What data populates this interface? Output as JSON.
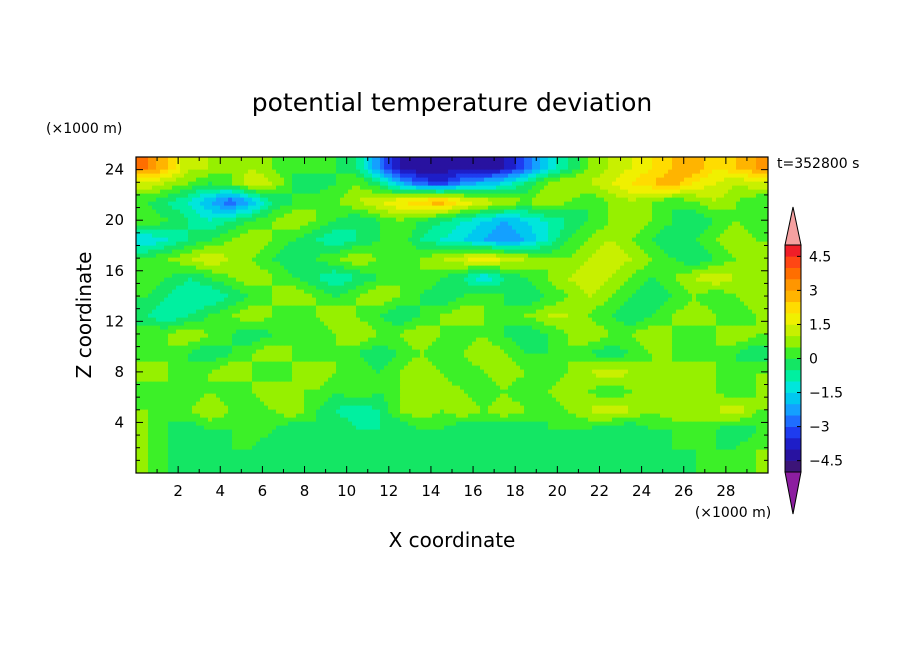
{
  "chart_data": {
    "type": "heatmap",
    "title": "potential temperature deviation",
    "xlabel": "X coordinate",
    "ylabel": "Z coordinate",
    "x_unit": "(×1000 m)",
    "y_unit": "(×1000 m)",
    "time_label": "t=352800 s",
    "xlim": [
      0,
      30
    ],
    "ylim": [
      0,
      25
    ],
    "x_ticks": [
      2,
      4,
      6,
      8,
      10,
      12,
      14,
      16,
      18,
      20,
      22,
      24,
      26,
      28
    ],
    "y_ticks": [
      4,
      8,
      12,
      16,
      20,
      24
    ],
    "colorbar": {
      "levels": [
        -5,
        -4.5,
        -4,
        -3.5,
        -3,
        -2.5,
        -2,
        -1.5,
        -1,
        -0.5,
        0,
        0.5,
        1,
        1.5,
        2,
        2.5,
        3,
        3.5,
        4,
        4.5,
        5
      ],
      "tick_labels": [
        "4.5",
        "3",
        "1.5",
        "0",
        "−1.5",
        "−3",
        "−4.5"
      ],
      "tick_values": [
        4.5,
        3,
        1.5,
        0,
        -1.5,
        -3,
        -4.5
      ],
      "bins_colors": [
        "#3c1478",
        "#2812a0",
        "#1e1ec8",
        "#1e3cf0",
        "#1e6eff",
        "#14a0ff",
        "#00c8f0",
        "#00e6dc",
        "#00f0a0",
        "#14e664",
        "#3cf028",
        "#96f000",
        "#c8f000",
        "#f0f000",
        "#ffdc00",
        "#ffb400",
        "#ff9600",
        "#ff6e00",
        "#ff4614",
        "#f01e28"
      ],
      "under_color": "#8c1ea0",
      "over_color": "#f5a0a0"
    },
    "field_description_rows": [
      {
        "z": 24.2,
        "values": [
          3.5,
          2.5,
          1.0,
          1.0,
          0.5,
          1.0,
          0.5,
          0.0,
          0.5,
          0.0,
          -0.5,
          -2.5,
          -4.0,
          -4.5,
          -4.5,
          -4.0,
          -4.5,
          -4.0,
          -3.0,
          -1.5,
          -0.5,
          0.5,
          1.0,
          1.5,
          2.0,
          2.5,
          3.0,
          2.0,
          2.5,
          3.0
        ]
      },
      {
        "z": 23.0,
        "values": [
          1.5,
          1.0,
          0.5,
          0.0,
          0.5,
          1.5,
          1.0,
          0.0,
          -0.5,
          0.0,
          0.5,
          -0.5,
          -2.0,
          -3.0,
          -3.5,
          -2.5,
          -2.0,
          -1.5,
          -0.5,
          0.5,
          1.0,
          1.0,
          1.5,
          2.0,
          2.5,
          3.0,
          2.0,
          1.5,
          1.0,
          1.5
        ]
      },
      {
        "z": 21.5,
        "values": [
          0.0,
          -0.5,
          -1.0,
          -2.0,
          -3.0,
          -2.0,
          -0.5,
          0.0,
          0.5,
          0.5,
          1.0,
          1.5,
          2.0,
          2.5,
          3.0,
          2.0,
          1.5,
          1.0,
          0.5,
          1.0,
          0.5,
          0.0,
          0.5,
          1.0,
          0.5,
          0.0,
          0.5,
          1.0,
          0.5,
          0.0
        ]
      },
      {
        "z": 20.0,
        "values": [
          0.5,
          0.0,
          -0.5,
          -1.0,
          -0.5,
          0.0,
          0.5,
          1.0,
          0.5,
          0.0,
          -0.5,
          0.0,
          0.5,
          0.0,
          -0.5,
          -1.0,
          -1.5,
          -2.0,
          -1.5,
          -1.0,
          -0.5,
          0.0,
          0.5,
          1.0,
          0.5,
          0.0,
          -0.5,
          0.0,
          0.5,
          0.0
        ]
      },
      {
        "z": 18.5,
        "values": [
          -1.5,
          -1.0,
          -0.5,
          0.0,
          0.5,
          1.0,
          0.5,
          0.0,
          -0.5,
          -1.0,
          -0.5,
          0.0,
          0.5,
          -0.5,
          -1.0,
          -1.5,
          -2.0,
          -2.5,
          -2.0,
          -1.0,
          0.0,
          0.5,
          1.0,
          0.5,
          0.0,
          -0.5,
          0.0,
          0.5,
          1.0,
          0.5
        ]
      },
      {
        "z": 17.0,
        "values": [
          0.0,
          0.5,
          1.0,
          1.5,
          1.0,
          0.5,
          0.0,
          -0.5,
          0.0,
          0.5,
          1.0,
          0.5,
          0.0,
          0.5,
          1.0,
          1.5,
          2.0,
          1.5,
          1.0,
          0.5,
          0.5,
          1.0,
          1.5,
          1.0,
          0.5,
          0.0,
          -0.5,
          0.0,
          0.5,
          1.0
        ]
      },
      {
        "z": 15.5,
        "values": [
          0.5,
          0.0,
          -0.5,
          0.0,
          0.5,
          1.0,
          0.5,
          0.0,
          -0.5,
          -1.0,
          -0.5,
          0.0,
          0.5,
          0.5,
          0.0,
          -0.5,
          -1.5,
          -0.5,
          0.0,
          0.5,
          1.0,
          1.5,
          1.0,
          0.5,
          0.0,
          0.5,
          1.0,
          1.5,
          1.0,
          0.5
        ]
      },
      {
        "z": 14.0,
        "values": [
          0.0,
          -0.5,
          -1.0,
          -1.0,
          -0.5,
          0.0,
          0.5,
          1.0,
          0.5,
          0.0,
          0.5,
          1.0,
          0.5,
          0.0,
          -0.5,
          0.0,
          0.5,
          0.0,
          -0.5,
          0.0,
          0.5,
          1.0,
          0.5,
          0.0,
          -0.5,
          0.0,
          0.5,
          0.0,
          0.5,
          1.0
        ]
      },
      {
        "z": 12.5,
        "values": [
          -0.5,
          -1.0,
          -0.5,
          0.0,
          0.5,
          1.0,
          0.5,
          0.0,
          0.5,
          1.0,
          0.5,
          0.0,
          -0.5,
          0.0,
          0.5,
          1.0,
          0.5,
          0.0,
          0.5,
          1.0,
          1.0,
          0.5,
          0.0,
          -0.5,
          0.0,
          0.5,
          1.0,
          0.5,
          0.0,
          0.5
        ]
      },
      {
        "z": 11.0,
        "values": [
          0.5,
          0.5,
          1.0,
          0.5,
          0.0,
          -0.5,
          0.0,
          0.5,
          0.0,
          0.5,
          1.0,
          0.5,
          0.5,
          1.0,
          0.5,
          0.0,
          0.5,
          0.0,
          -0.5,
          0.0,
          0.5,
          1.0,
          0.5,
          0.5,
          1.0,
          0.5,
          0.0,
          0.5,
          1.0,
          0.5
        ]
      },
      {
        "z": 9.5,
        "values": [
          0.0,
          0.5,
          0.0,
          -0.5,
          0.0,
          0.5,
          1.0,
          0.5,
          0.0,
          0.5,
          0.0,
          -0.5,
          0.0,
          0.5,
          0.0,
          0.5,
          1.0,
          0.5,
          0.0,
          0.0,
          0.5,
          0.0,
          -0.5,
          0.0,
          0.5,
          0.5,
          0.0,
          0.5,
          0.0,
          -0.5
        ]
      },
      {
        "z": 8.0,
        "values": [
          1.0,
          0.5,
          0.0,
          0.5,
          1.0,
          0.5,
          0.0,
          0.5,
          1.0,
          0.5,
          0.5,
          0.0,
          0.5,
          1.0,
          0.5,
          0.0,
          0.5,
          1.0,
          0.5,
          0.0,
          0.5,
          1.0,
          1.5,
          1.0,
          0.5,
          0.5,
          1.0,
          0.5,
          0.0,
          0.5
        ]
      },
      {
        "z": 6.5,
        "values": [
          0.0,
          0.5,
          0.0,
          0.5,
          0.0,
          0.5,
          1.0,
          0.5,
          0.5,
          0.0,
          0.5,
          0.0,
          0.5,
          0.5,
          1.0,
          0.5,
          0.0,
          0.5,
          0.0,
          0.5,
          1.0,
          0.5,
          0.0,
          0.5,
          1.0,
          0.5,
          1.0,
          0.5,
          0.0,
          0.5
        ]
      },
      {
        "z": 5.0,
        "values": [
          0.5,
          0.0,
          0.5,
          1.0,
          0.5,
          0.0,
          0.5,
          1.0,
          0.0,
          -0.5,
          -1.0,
          -0.5,
          0.5,
          1.0,
          0.5,
          1.0,
          0.5,
          1.0,
          0.5,
          0.0,
          0.5,
          1.0,
          1.5,
          1.0,
          0.5,
          1.0,
          0.5,
          1.0,
          1.5,
          0.5
        ]
      },
      {
        "z": 3.5,
        "values": [
          0.5,
          0.0,
          -0.5,
          0.0,
          0.0,
          0.5,
          0.0,
          -0.5,
          0.0,
          0.0,
          -0.5,
          -0.5,
          -0.5,
          0.0,
          0.0,
          -0.5,
          -0.5,
          -0.5,
          -0.5,
          0.0,
          0.0,
          0.0,
          -0.5,
          -0.5,
          0.0,
          0.0,
          0.5,
          0.0,
          -0.5,
          0.0
        ]
      },
      {
        "z": 2.0,
        "values": [
          0.5,
          0.0,
          -0.5,
          -0.5,
          0.0,
          0.0,
          -0.5,
          -0.5,
          -0.5,
          -0.5,
          -0.5,
          -0.5,
          -0.5,
          -0.5,
          -0.5,
          -0.5,
          -0.5,
          -0.5,
          -0.5,
          -0.5,
          -0.5,
          -0.5,
          -0.5,
          -0.5,
          -0.5,
          0.0,
          0.0,
          0.0,
          0.0,
          0.5
        ]
      },
      {
        "z": 0.5,
        "values": [
          0.5,
          0.0,
          -0.5,
          -0.5,
          0.0,
          -0.5,
          -0.5,
          -0.5,
          -0.5,
          -0.5,
          -0.5,
          -0.5,
          -0.5,
          -0.5,
          -0.5,
          -0.5,
          -0.5,
          -0.5,
          -0.5,
          -0.5,
          -0.5,
          -0.5,
          -0.5,
          -0.5,
          -0.5,
          -0.5,
          0.0,
          0.0,
          0.0,
          0.5
        ]
      }
    ]
  }
}
